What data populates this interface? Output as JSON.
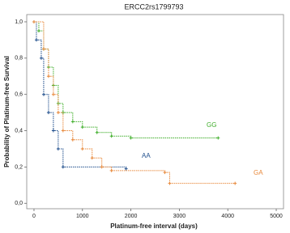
{
  "chart_data": {
    "type": "step",
    "title": "ERCC2rs1799793",
    "x_label": "Platinum-free interval (days)",
    "y_label": "Probability of Platinum-free Survival",
    "xlim": [
      -150,
      5150
    ],
    "ylim": [
      -0.03,
      1.04
    ],
    "xticks": [
      0,
      1000,
      2000,
      3000,
      4000,
      5000
    ],
    "yticks": [
      {
        "value": 0,
        "label": "0,0"
      },
      {
        "value": 0.2,
        "label": "0,2"
      },
      {
        "value": 0.4,
        "label": "0,4"
      },
      {
        "value": 0.6,
        "label": "0,6"
      },
      {
        "value": 0.8,
        "label": "0,8"
      },
      {
        "value": 1,
        "label": "1,0"
      }
    ],
    "series": [
      {
        "name": "GG",
        "color": "#3fae2a",
        "x": [
          0,
          100,
          200,
          300,
          400,
          500,
          600,
          800,
          1000,
          1300,
          1600,
          2000,
          3800
        ],
        "values": [
          1.0,
          0.95,
          0.85,
          0.75,
          0.65,
          0.55,
          0.5,
          0.45,
          0.42,
          0.39,
          0.37,
          0.36,
          0.36
        ]
      },
      {
        "name": "AA",
        "color": "#1f4e8c",
        "x": [
          0,
          50,
          150,
          200,
          300,
          400,
          500,
          600,
          1900
        ],
        "values": [
          1.0,
          0.9,
          0.8,
          0.6,
          0.5,
          0.4,
          0.3,
          0.2,
          0.19
        ]
      },
      {
        "name": "GA",
        "color": "#e8883a",
        "x": [
          0,
          200,
          300,
          400,
          500,
          600,
          800,
          1000,
          1200,
          1400,
          1600,
          2700,
          2800,
          4150
        ],
        "values": [
          1.0,
          0.85,
          0.7,
          0.6,
          0.5,
          0.4,
          0.35,
          0.3,
          0.25,
          0.2,
          0.18,
          0.17,
          0.11,
          0.11
        ]
      }
    ]
  }
}
